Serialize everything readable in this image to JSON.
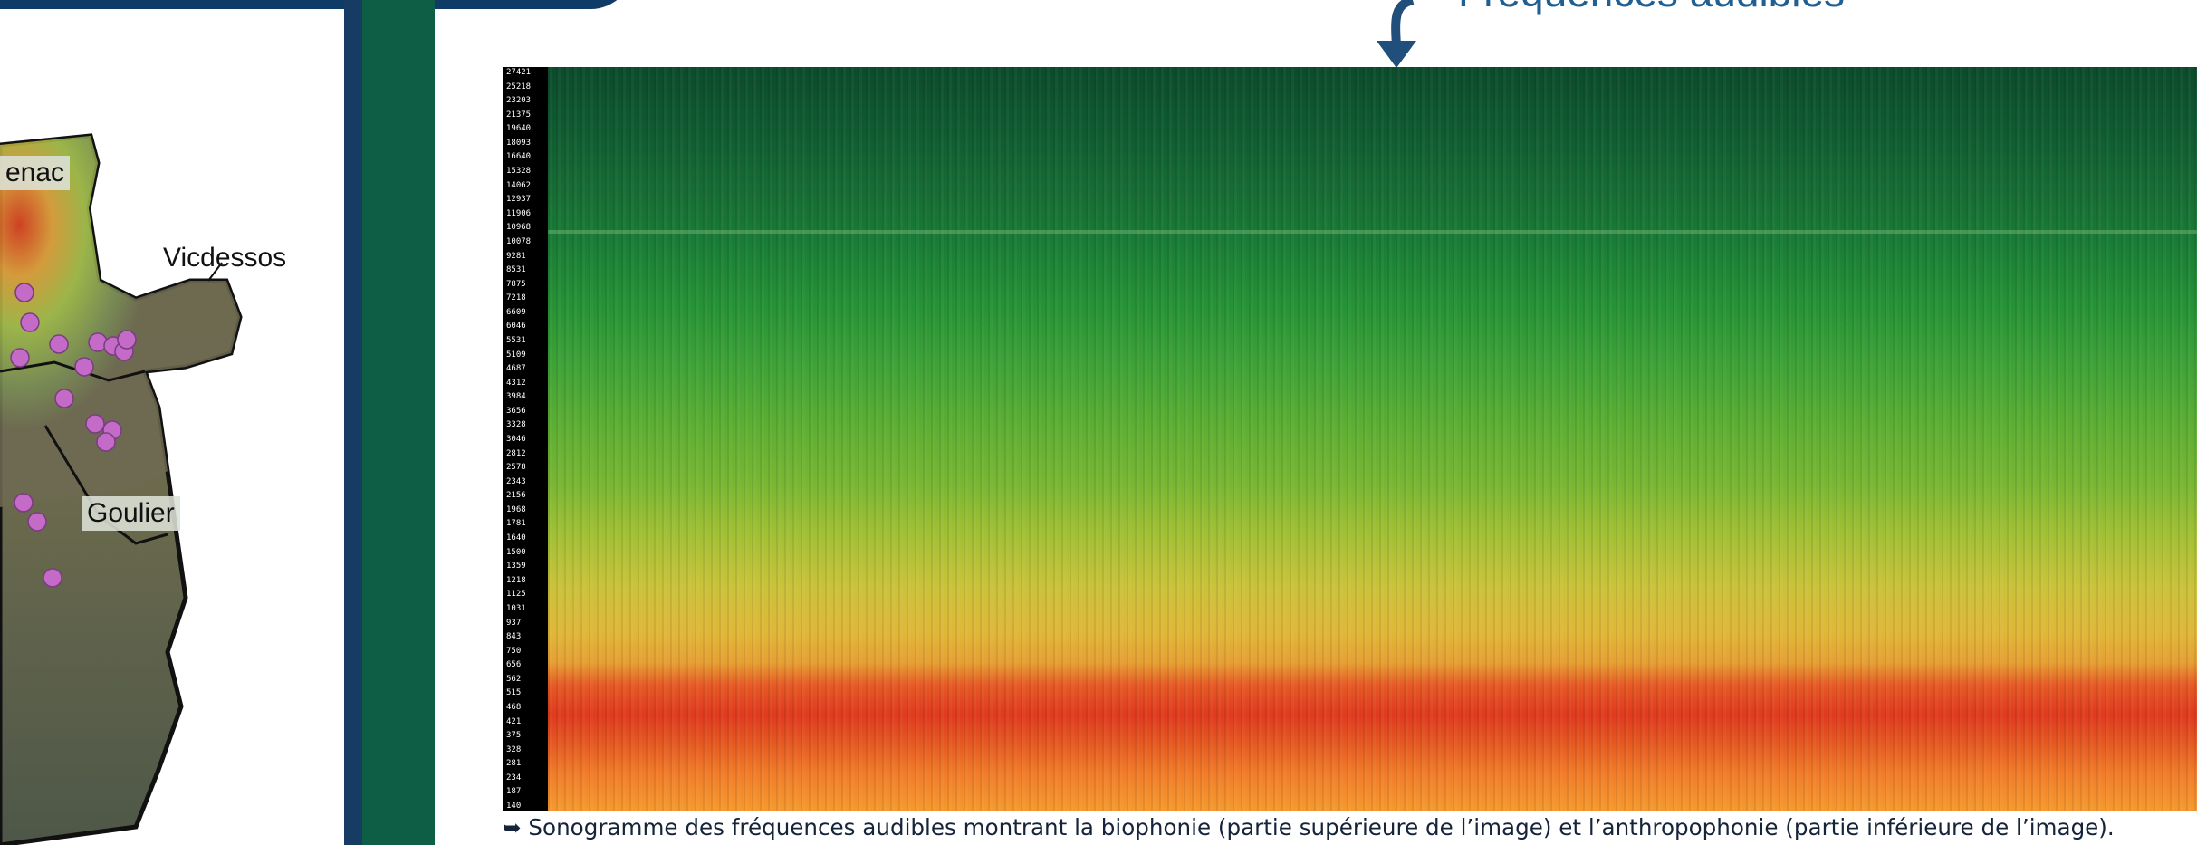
{
  "map": {
    "labels": {
      "label_1": "enac",
      "label_2": "Vicdessos",
      "label_3": "Goulier"
    }
  },
  "spectrogram": {
    "top_label": "Fréquences audibles",
    "frequency_ticks": [
      "27421",
      "25218",
      "23203",
      "21375",
      "19640",
      "18093",
      "16640",
      "15328",
      "14062",
      "12937",
      "11906",
      "10968",
      "10078",
      "9281",
      "8531",
      "7875",
      "7218",
      "6609",
      "6046",
      "5531",
      "5109",
      "4687",
      "4312",
      "3984",
      "3656",
      "3328",
      "3046",
      "2812",
      "2578",
      "2343",
      "2156",
      "1968",
      "1781",
      "1640",
      "1500",
      "1359",
      "1218",
      "1125",
      "1031",
      "937",
      "843",
      "750",
      "656",
      "562",
      "515",
      "468",
      "421",
      "375",
      "328",
      "281",
      "234",
      "187",
      "140"
    ],
    "caption": "➥ Sonogramme des fréquences audibles montrant la biophonie (partie supérieure de l’image) et l’anthropophonie (partie inférieure de l’image)."
  },
  "colors": {
    "navy": "#163c63",
    "green": "#0d5e44",
    "label_blue": "#1f5f92",
    "marker": "#c46bc8"
  },
  "icons": {
    "arrow": "arrow-down-icon"
  }
}
